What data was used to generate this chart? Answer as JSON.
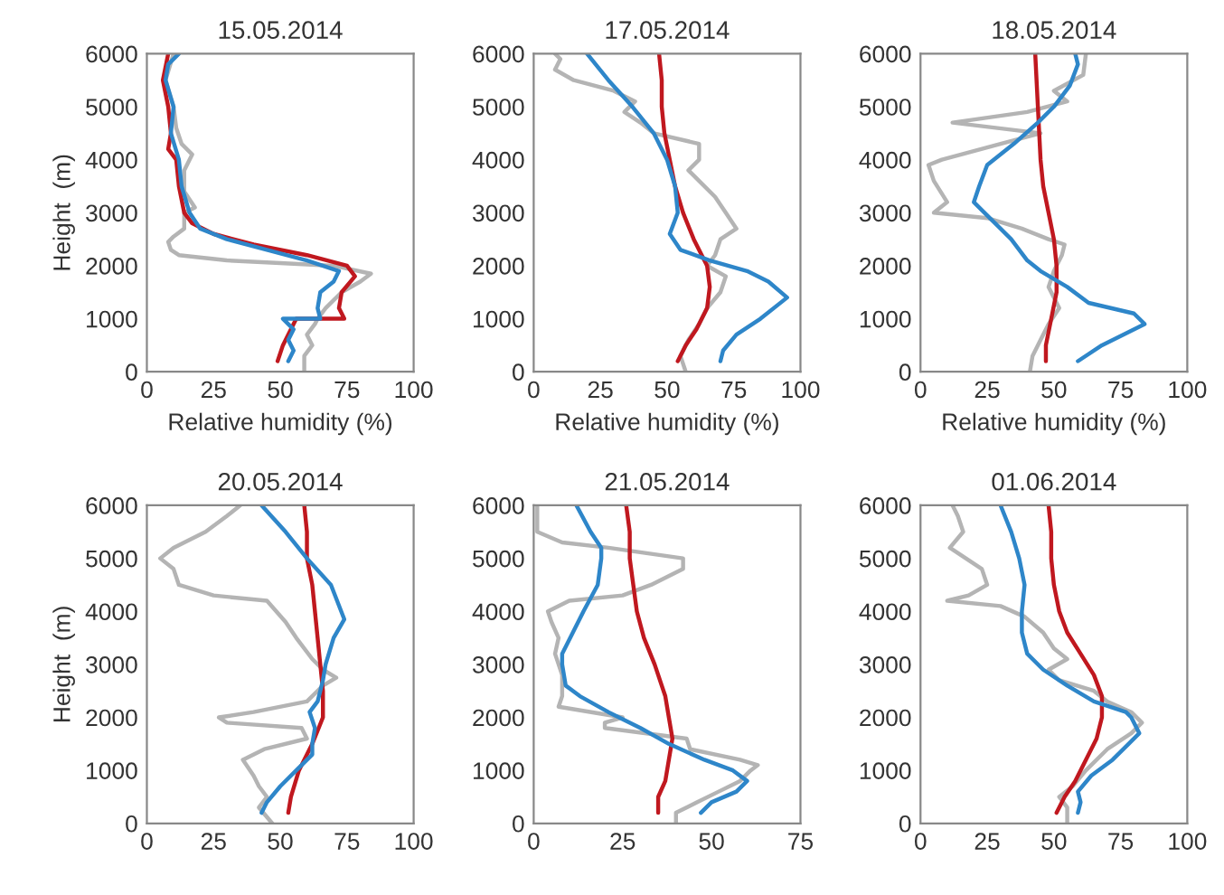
{
  "chart_data": [
    {
      "type": "line",
      "title": "15.05.2014",
      "xlabel": "Relative humidity (%)",
      "ylabel": "Height  (m)",
      "xlim": [
        0,
        100
      ],
      "xticks": [
        0,
        25,
        50,
        75,
        100
      ],
      "ylim": [
        0,
        6000
      ],
      "yticks": [
        0,
        1000,
        2000,
        3000,
        4000,
        5000,
        6000
      ],
      "series": [
        {
          "color": "#b4b4b4",
          "x": [
            59,
            59,
            62,
            60,
            63,
            64,
            67,
            73,
            80,
            84,
            70,
            50,
            30,
            12,
            9,
            8,
            10,
            14,
            14,
            18,
            14,
            14,
            17,
            13,
            11,
            10,
            7,
            10
          ],
          "values": [
            0,
            300,
            500,
            700,
            900,
            1000,
            1200,
            1500,
            1700,
            1850,
            2000,
            2050,
            2100,
            2200,
            2300,
            2450,
            2550,
            2700,
            3000,
            3100,
            3400,
            3800,
            4100,
            4300,
            4600,
            5000,
            5500,
            6000
          ]
        },
        {
          "color": "#c0181f",
          "x": [
            49,
            51,
            54,
            56,
            74,
            72,
            73,
            78,
            75,
            60,
            40,
            25,
            17,
            14,
            12,
            11,
            8,
            9,
            8,
            6,
            8
          ],
          "values": [
            200,
            500,
            800,
            1000,
            1000,
            1200,
            1500,
            1800,
            2000,
            2200,
            2400,
            2600,
            2800,
            3000,
            3500,
            4000,
            4200,
            4500,
            5000,
            5500,
            6000
          ]
        },
        {
          "color": "#2e86c9",
          "x": [
            53,
            55,
            53,
            55,
            51,
            65,
            64,
            65,
            70,
            72,
            60,
            45,
            30,
            20,
            16,
            13,
            12,
            9,
            10,
            7,
            8,
            12
          ],
          "values": [
            200,
            400,
            600,
            800,
            1000,
            1000,
            1200,
            1500,
            1700,
            1900,
            2100,
            2300,
            2500,
            2700,
            3000,
            3500,
            4000,
            4500,
            5000,
            5500,
            5800,
            6000
          ]
        }
      ]
    },
    {
      "type": "line",
      "title": "17.05.2014",
      "xlabel": "Relative humidity (%)",
      "xlim": [
        0,
        100
      ],
      "xticks": [
        0,
        25,
        50,
        75,
        100
      ],
      "ylim": [
        0,
        6000
      ],
      "yticks": [
        0,
        1000,
        2000,
        3000,
        4000,
        5000,
        6000
      ],
      "series": [
        {
          "color": "#b4b4b4",
          "x": [
            57,
            55,
            58,
            62,
            65,
            70,
            72,
            65,
            68,
            70,
            76,
            72,
            68,
            62,
            58,
            62,
            62,
            45,
            40,
            34,
            38,
            30,
            15,
            8,
            10,
            8
          ],
          "values": [
            0,
            300,
            600,
            900,
            1200,
            1500,
            1800,
            2000,
            2200,
            2500,
            2700,
            3000,
            3300,
            3600,
            3800,
            4000,
            4300,
            4500,
            4700,
            4900,
            5100,
            5300,
            5500,
            5700,
            5900,
            6000
          ]
        },
        {
          "color": "#c0181f",
          "x": [
            54,
            57,
            61,
            65,
            66,
            65,
            60,
            56,
            53,
            51,
            49,
            48,
            48,
            47
          ],
          "values": [
            200,
            500,
            800,
            1200,
            1600,
            2000,
            2500,
            3000,
            3500,
            4000,
            4500,
            5000,
            5500,
            6000
          ]
        },
        {
          "color": "#2e86c9",
          "x": [
            70,
            71,
            76,
            85,
            95,
            88,
            80,
            66,
            55,
            51,
            54,
            53,
            50,
            45,
            37,
            28,
            20
          ],
          "values": [
            200,
            400,
            700,
            1000,
            1400,
            1700,
            1900,
            2100,
            2300,
            2600,
            3000,
            3500,
            4000,
            4500,
            5000,
            5500,
            6000
          ]
        }
      ]
    },
    {
      "type": "line",
      "title": "18.05.2014",
      "xlabel": "Relative humidity (%)",
      "xlim": [
        0,
        100
      ],
      "xticks": [
        0,
        25,
        50,
        75,
        100
      ],
      "ylim": [
        0,
        6000
      ],
      "yticks": [
        0,
        1000,
        2000,
        3000,
        4000,
        5000,
        6000
      ],
      "series": [
        {
          "color": "#b4b4b4",
          "x": [
            41,
            42,
            45,
            48,
            52,
            48,
            50,
            53,
            54,
            48,
            38,
            25,
            5,
            10,
            5,
            3,
            8,
            30,
            45,
            12,
            40,
            55,
            50,
            61,
            62
          ],
          "values": [
            0,
            300,
            600,
            900,
            1200,
            1600,
            1900,
            2200,
            2400,
            2500,
            2700,
            2900,
            3000,
            3200,
            3600,
            3900,
            4000,
            4300,
            4500,
            4700,
            4900,
            5100,
            5300,
            5600,
            6000
          ]
        },
        {
          "color": "#c0181f",
          "x": [
            47,
            47,
            49,
            51,
            51,
            50,
            48,
            46,
            45,
            44,
            43
          ],
          "values": [
            200,
            500,
            1000,
            1500,
            2000,
            2500,
            3000,
            3500,
            4000,
            5000,
            6000
          ]
        },
        {
          "color": "#2e86c9",
          "x": [
            59,
            68,
            84,
            80,
            63,
            55,
            45,
            40,
            34,
            24,
            20,
            22,
            25,
            35,
            44,
            50,
            56,
            59,
            58
          ],
          "values": [
            200,
            500,
            900,
            1100,
            1300,
            1600,
            1900,
            2100,
            2500,
            3000,
            3200,
            3500,
            3900,
            4300,
            4700,
            5000,
            5400,
            5800,
            6000
          ]
        }
      ]
    },
    {
      "type": "line",
      "title": "20.05.2014",
      "ylabel": "Height  (m)",
      "xlim": [
        0,
        100
      ],
      "xticks": [
        0,
        25,
        50,
        75,
        100
      ],
      "ylim": [
        0,
        6000
      ],
      "yticks": [
        0,
        1000,
        2000,
        3000,
        4000,
        5000,
        6000
      ],
      "series": [
        {
          "color": "#b4b4b4",
          "x": [
            47,
            42,
            45,
            42,
            40,
            36,
            44,
            60,
            58,
            30,
            27,
            40,
            60,
            66,
            71,
            66,
            62,
            56,
            52,
            45,
            25,
            12,
            10,
            5,
            10,
            22,
            30,
            35
          ],
          "values": [
            0,
            300,
            500,
            700,
            900,
            1200,
            1400,
            1600,
            1800,
            1900,
            2000,
            2100,
            2300,
            2600,
            2750,
            2900,
            3100,
            3500,
            3800,
            4200,
            4300,
            4500,
            4800,
            5000,
            5200,
            5500,
            5800,
            6000
          ]
        },
        {
          "color": "#c0181f",
          "x": [
            53,
            54,
            57,
            62,
            66,
            66,
            65,
            64,
            63,
            62,
            60,
            60,
            59
          ],
          "values": [
            200,
            500,
            1000,
            1500,
            2000,
            2500,
            3000,
            3500,
            4000,
            4500,
            5000,
            5500,
            6000
          ]
        },
        {
          "color": "#2e86c9",
          "x": [
            43,
            45,
            50,
            56,
            62,
            62,
            63,
            61,
            64,
            66,
            67,
            70,
            74,
            69,
            60,
            52,
            43
          ],
          "values": [
            200,
            400,
            700,
            1000,
            1300,
            1500,
            1800,
            2100,
            2300,
            2700,
            3000,
            3500,
            3850,
            4500,
            5000,
            5500,
            6000
          ]
        }
      ]
    },
    {
      "type": "line",
      "title": "21.05.2014",
      "xlim": [
        0,
        75
      ],
      "xticks": [
        0,
        25,
        50,
        75
      ],
      "ylim": [
        0,
        6000
      ],
      "yticks": [
        0,
        1000,
        2000,
        3000,
        4000,
        5000,
        6000
      ],
      "series": [
        {
          "color": "#b4b4b4",
          "x": [
            40,
            40,
            46,
            52,
            58,
            61,
            63,
            58,
            44,
            43,
            20,
            20,
            25,
            7,
            8,
            8,
            6,
            7,
            5,
            4,
            10,
            25,
            33,
            42,
            42,
            21,
            8,
            1,
            1
          ],
          "values": [
            0,
            200,
            400,
            600,
            800,
            1000,
            1100,
            1200,
            1400,
            1600,
            1800,
            1900,
            2000,
            2200,
            2400,
            2800,
            3200,
            3500,
            3800,
            4000,
            4200,
            4300,
            4500,
            4800,
            5000,
            5200,
            5300,
            5500,
            6000
          ]
        },
        {
          "color": "#c0181f",
          "x": [
            35,
            35,
            37,
            38,
            39,
            38,
            37,
            34,
            31,
            29,
            28,
            27,
            27,
            26
          ],
          "values": [
            200,
            500,
            800,
            1200,
            1600,
            2000,
            2400,
            3000,
            3500,
            4000,
            4500,
            5000,
            5500,
            6000
          ]
        },
        {
          "color": "#2e86c9",
          "x": [
            47,
            50,
            57,
            60,
            56,
            48,
            38,
            30,
            21,
            13,
            9,
            8,
            8,
            11,
            14,
            18,
            19,
            19,
            16,
            12
          ],
          "values": [
            200,
            400,
            600,
            800,
            1000,
            1200,
            1500,
            1800,
            2100,
            2400,
            2600,
            3000,
            3200,
            3600,
            4000,
            4500,
            5000,
            5200,
            5500,
            6000
          ]
        }
      ]
    },
    {
      "type": "line",
      "title": "01.06.2014",
      "xlim": [
        0,
        100
      ],
      "xticks": [
        0,
        25,
        50,
        75,
        100
      ],
      "ylim": [
        0,
        6000
      ],
      "yticks": [
        0,
        1000,
        2000,
        3000,
        4000,
        5000,
        6000
      ],
      "series": [
        {
          "color": "#b4b4b4",
          "x": [
            55,
            55,
            52,
            57,
            62,
            70,
            79,
            83,
            79,
            70,
            65,
            52,
            48,
            55,
            50,
            46,
            39,
            30,
            10,
            18,
            25,
            23,
            17,
            11,
            16,
            14,
            12
          ],
          "values": [
            0,
            300,
            500,
            700,
            1000,
            1400,
            1700,
            1900,
            2100,
            2300,
            2500,
            2700,
            2900,
            3100,
            3300,
            3600,
            3900,
            4100,
            4200,
            4300,
            4500,
            4800,
            5000,
            5200,
            5500,
            5800,
            6000
          ]
        },
        {
          "color": "#c0181f",
          "x": [
            51,
            54,
            58,
            62,
            66,
            68,
            68,
            65,
            60,
            55,
            52,
            50,
            49,
            49,
            48
          ],
          "values": [
            200,
            500,
            800,
            1200,
            1600,
            2000,
            2400,
            2800,
            3200,
            3600,
            4000,
            4500,
            5000,
            5500,
            6000
          ]
        },
        {
          "color": "#2e86c9",
          "x": [
            59,
            60,
            59,
            64,
            72,
            78,
            82,
            79,
            77,
            65,
            55,
            46,
            40,
            38,
            38,
            39,
            37,
            34,
            30
          ],
          "values": [
            200,
            400,
            600,
            900,
            1200,
            1500,
            1700,
            2000,
            2100,
            2300,
            2600,
            2900,
            3200,
            3600,
            4000,
            4500,
            5000,
            5500,
            6000
          ]
        }
      ]
    }
  ]
}
